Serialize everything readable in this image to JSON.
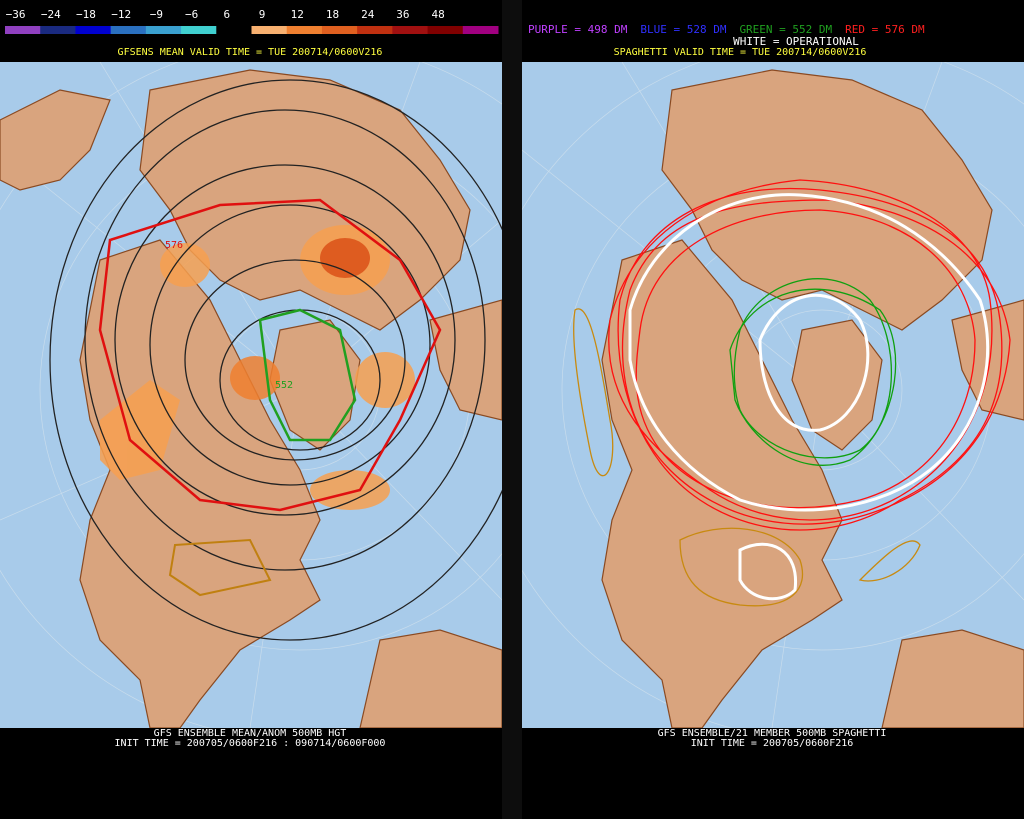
{
  "left_panel": {
    "colorbar_labels": [
      "−36",
      "−24",
      "−18",
      "−12",
      "−9",
      "−6",
      "6",
      "9",
      "12",
      "18",
      "24",
      "36",
      "48"
    ],
    "header": "GFSENS MEAN VALID TIME = TUE 200714/0600V216",
    "contour_labels": [
      "576",
      "552"
    ],
    "footer": [
      "GFS ENSEMBLE MEAN/ANOM 500MB HGT",
      "INIT TIME = 200705/0600F216 : 090714/0600F000"
    ]
  },
  "right_panel": {
    "legend": [
      {
        "text": "PURPLE = 498 DM",
        "color": "#c040ff"
      },
      {
        "text": "BLUE = 528 DM",
        "color": "#3030ff"
      },
      {
        "text": "GREEN = 552 DM",
        "color": "#20a020"
      },
      {
        "text": "RED = 576 DM",
        "color": "#ff2020"
      }
    ],
    "operational": "WHITE = OPERATIONAL",
    "header": "SPAGHETTI VALID TIME = TUE 200714/0600V216",
    "footer": [
      "GFS ENSEMBLE/21 MEMBER 500MB SPAGHETTI",
      "INIT TIME = 200705/0600F216"
    ]
  }
}
